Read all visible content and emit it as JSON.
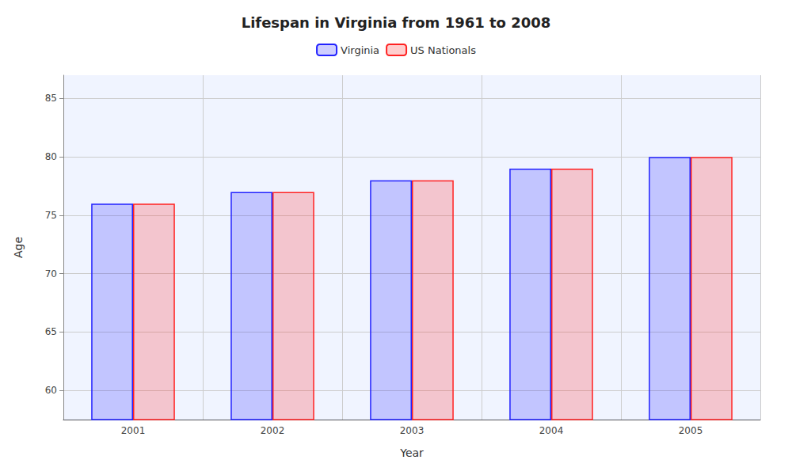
{
  "chart_data": {
    "type": "bar",
    "title": "Lifespan in Virginia from 1961 to 2008",
    "x_label": "Year",
    "y_label": "Age",
    "categories": [
      "2001",
      "2002",
      "2003",
      "2004",
      "2005"
    ],
    "series": [
      {
        "name": "Virginia",
        "color": "#2222ff",
        "values": [
          76,
          77,
          78,
          79,
          80
        ]
      },
      {
        "name": "US Nationals",
        "color": "#ff2222",
        "values": [
          76,
          77,
          78,
          79,
          80
        ]
      }
    ],
    "ylim": [
      57.5,
      87
    ],
    "yticks": [
      60,
      65,
      70,
      75,
      80,
      85
    ],
    "grid": true,
    "legend": "top"
  }
}
